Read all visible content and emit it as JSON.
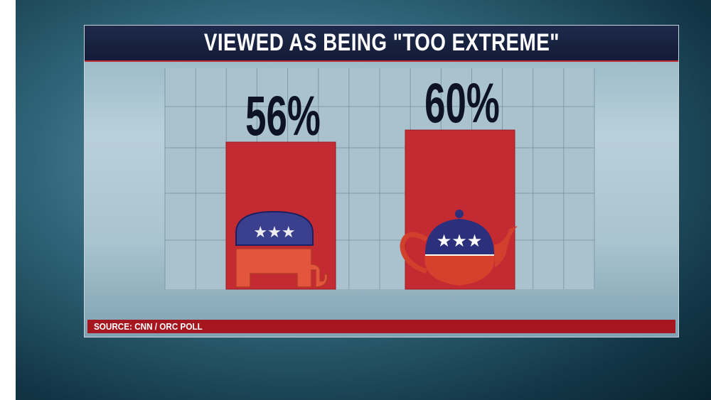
{
  "title": "VIEWED AS BEING \"TOO EXTREME\"",
  "source": "SOURCE: CNN / ORC POLL",
  "chart_data": {
    "type": "bar",
    "title": "VIEWED AS BEING \"TOO EXTREME\"",
    "categories": [
      "Republican Party",
      "Tea Party"
    ],
    "category_icons": [
      "elephant-icon",
      "teapot-icon"
    ],
    "values": [
      56,
      60
    ],
    "labels": [
      "56%",
      "60%"
    ],
    "xlabel": "",
    "ylabel": "",
    "grid": true,
    "colors": {
      "bar": "#c42a32",
      "label": "#0d1322"
    }
  }
}
